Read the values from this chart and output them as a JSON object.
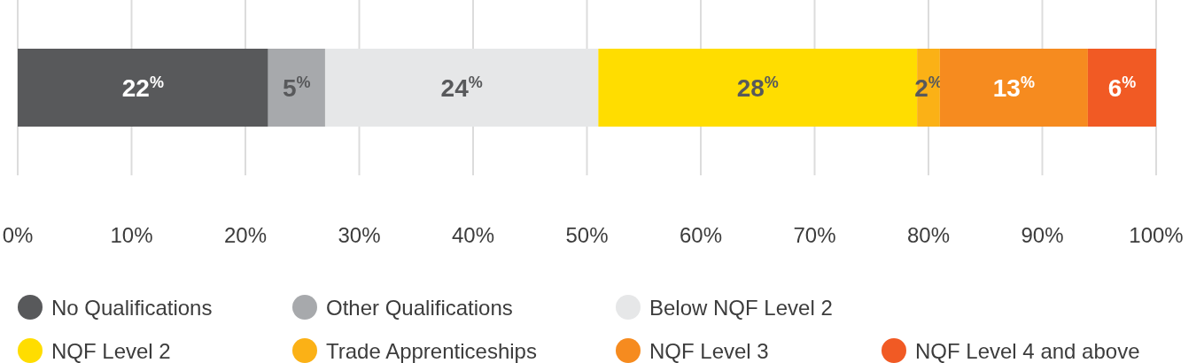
{
  "chart_data": {
    "type": "bar",
    "orientation": "horizontal",
    "stacked": true,
    "categories": [
      null
    ],
    "series": [
      {
        "name": "No Qualifications",
        "color": "#58595b",
        "values": [
          22
        ],
        "value_labels": [
          "22$^{%}$"
        ]
      },
      {
        "name": "Other Qualifications",
        "color": "#a7a9ac",
        "values": [
          5
        ],
        "value_labels": [
          "5$^{%}$"
        ]
      },
      {
        "name": "Below NQF Level 2",
        "color": "#e6e7e8",
        "values": [
          24
        ],
        "value_labels": [
          "24$^{%}$"
        ]
      },
      {
        "name": "NQF Level 2",
        "color": "#ffdd00",
        "values": [
          28
        ],
        "value_labels": [
          "28$^{%}$"
        ]
      },
      {
        "name": "Trade Apprenticeships",
        "color": "#fbb116",
        "values": [
          2
        ],
        "value_labels": [
          "2$^{%}$"
        ]
      },
      {
        "name": "NQF Level 3",
        "color": "#f68b1f",
        "values": [
          13
        ],
        "value_labels": [
          "13$^{%}$"
        ]
      },
      {
        "name": "NQF Level 4 and above",
        "color": "#f15a24",
        "values": [
          6
        ],
        "value_labels": [
          "6$^{%}$"
        ]
      }
    ],
    "xlim": [
      0,
      100
    ],
    "xticks": [
      {
        "value": 0,
        "label": "0%"
      },
      {
        "value": 10,
        "label": "10%"
      },
      {
        "value": 20,
        "label": "20%"
      },
      {
        "value": 30,
        "label": "30%"
      },
      {
        "value": 40,
        "label": "40%"
      },
      {
        "value": 50,
        "label": "50%"
      },
      {
        "value": 60,
        "label": "60%"
      },
      {
        "value": 70,
        "label": "70%"
      },
      {
        "value": 80,
        "label": "80%"
      },
      {
        "value": 90,
        "label": "90%"
      },
      {
        "value": 100,
        "label": "100%"
      }
    ],
    "grid": "x",
    "legend": "bottom"
  }
}
